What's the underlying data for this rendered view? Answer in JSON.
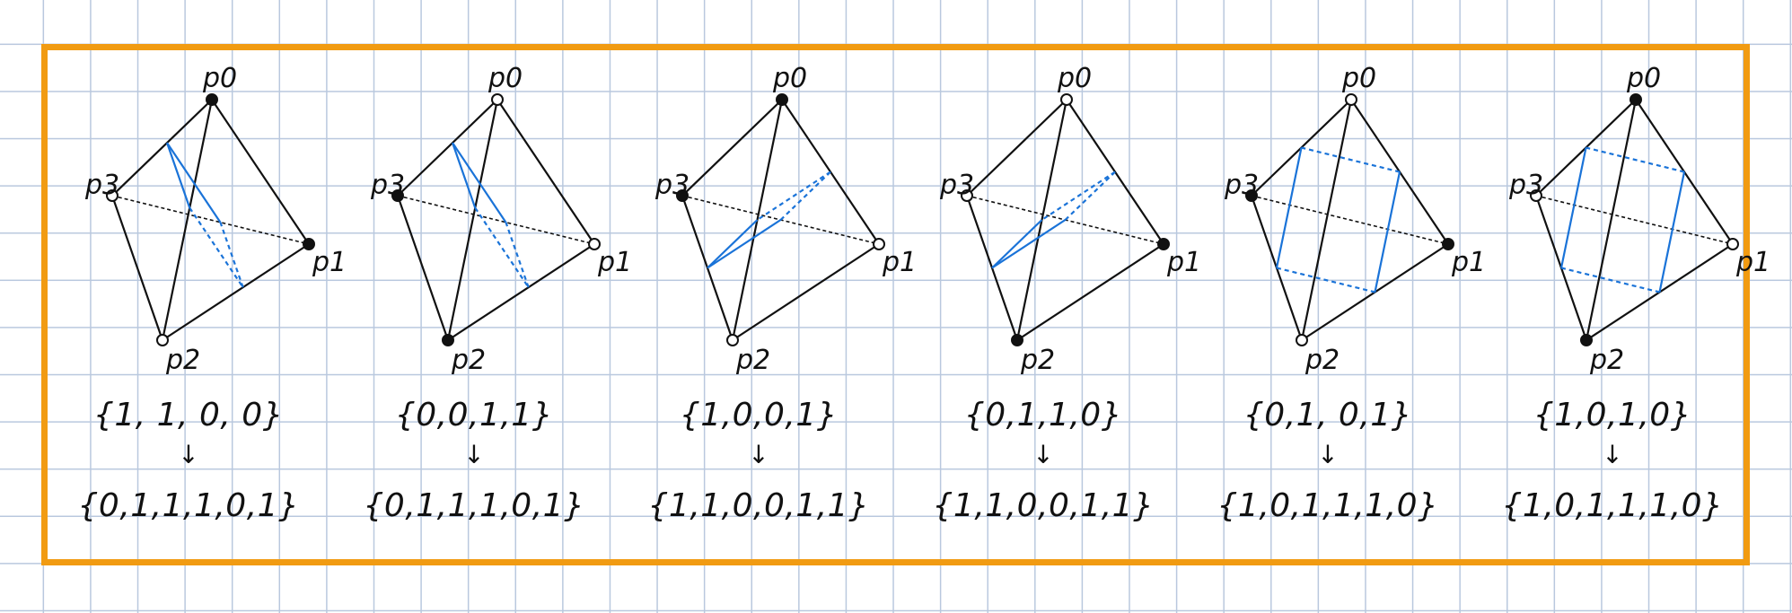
{
  "figure": {
    "frame_color": "#f19b12",
    "ink_color": "#111111",
    "cut_color": "#1a73d8",
    "grid_color": "#b9c8de"
  },
  "panels": [
    {
      "vertex_labels": [
        "p0",
        "p1",
        "p2",
        "p3"
      ],
      "vertex_states": [
        1,
        1,
        0,
        0
      ],
      "input_code": "{1, 1, 0, 0}",
      "arrow": "↓",
      "output_code": "{0,1,1,1,0,1}",
      "cut_shape": "quad"
    },
    {
      "vertex_labels": [
        "p0",
        "p1",
        "p2",
        "p3"
      ],
      "vertex_states": [
        0,
        0,
        1,
        1
      ],
      "input_code": "{0,0,1,1}",
      "arrow": "↓",
      "output_code": "{0,1,1,1,0,1}",
      "cut_shape": "quad"
    },
    {
      "vertex_labels": [
        "p0",
        "p1",
        "p2",
        "p3"
      ],
      "vertex_states": [
        1,
        0,
        0,
        1
      ],
      "input_code": "{1,0,0,1}",
      "arrow": "↓",
      "output_code": "{1,1,0,0,1,1}",
      "cut_shape": "quad"
    },
    {
      "vertex_labels": [
        "p0",
        "p1",
        "p2",
        "p3"
      ],
      "vertex_states": [
        0,
        1,
        1,
        0
      ],
      "input_code": "{0,1,1,0}",
      "arrow": "↓",
      "output_code": "{1,1,0,0,1,1}",
      "cut_shape": "quad"
    },
    {
      "vertex_labels": [
        "p0",
        "p1",
        "p2",
        "p3"
      ],
      "vertex_states": [
        0,
        1,
        0,
        1
      ],
      "input_code": "{0,1, 0,1}",
      "arrow": "↓",
      "output_code": "{1,0,1,1,1,0}",
      "cut_shape": "quad"
    },
    {
      "vertex_labels": [
        "p0",
        "p1",
        "p2",
        "p3"
      ],
      "vertex_states": [
        1,
        0,
        1,
        0
      ],
      "input_code": "{1,0,1,0}",
      "arrow": "↓",
      "output_code": "{1,0,1,1,1,0}",
      "cut_shape": "quad"
    }
  ]
}
